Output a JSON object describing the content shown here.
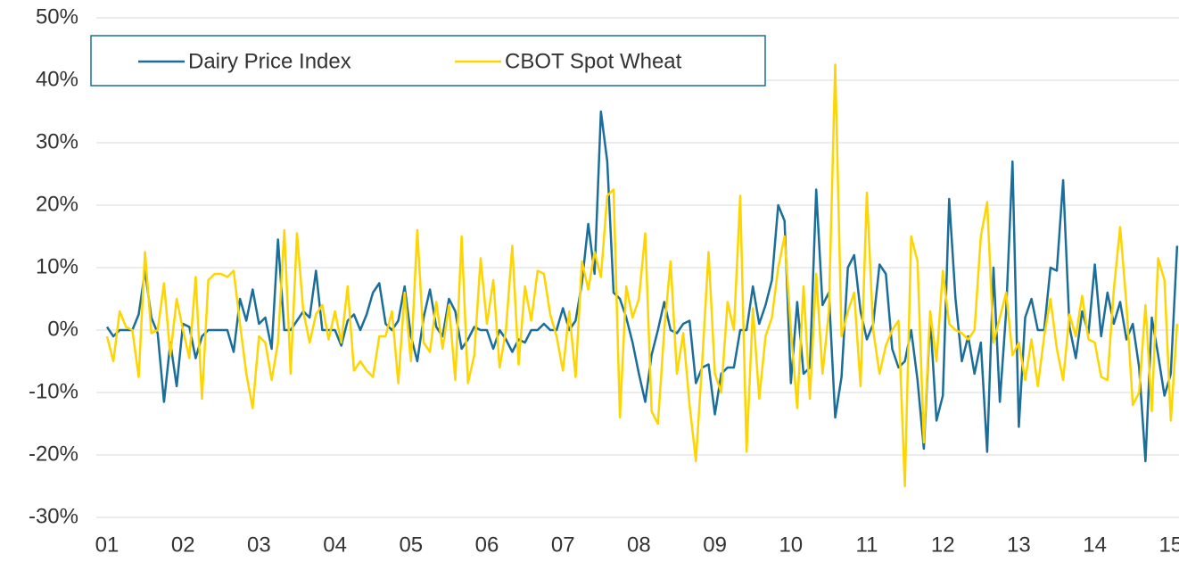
{
  "chart_data": {
    "type": "line",
    "x": [
      0,
      1,
      2,
      3,
      4,
      5,
      6,
      7,
      8,
      9,
      10,
      11,
      12,
      13,
      14,
      15,
      16,
      17,
      18,
      19,
      20,
      21,
      22,
      23,
      24,
      25,
      26,
      27,
      28,
      29,
      30,
      31,
      32,
      33,
      34,
      35,
      36,
      37,
      38,
      39,
      40,
      41,
      42,
      43,
      44,
      45,
      46,
      47,
      48,
      49,
      50,
      51,
      52,
      53,
      54,
      55,
      56,
      57,
      58,
      59,
      60,
      61,
      62,
      63,
      64,
      65,
      66,
      67,
      68,
      69,
      70,
      71,
      72,
      73,
      74,
      75,
      76,
      77,
      78,
      79,
      80,
      81,
      82,
      83,
      84,
      85,
      86,
      87,
      88,
      89,
      90,
      91,
      92,
      93,
      94,
      95,
      96,
      97,
      98,
      99,
      100,
      101,
      102,
      103,
      104,
      105,
      106,
      107,
      108,
      109,
      110,
      111,
      112,
      113,
      114,
      115,
      116,
      117,
      118,
      119,
      120,
      121,
      122,
      123,
      124,
      125,
      126,
      127,
      128,
      129,
      130,
      131,
      132,
      133,
      134,
      135,
      136,
      137,
      138,
      139,
      140,
      141,
      142,
      143,
      144,
      145,
      146,
      147,
      148,
      149,
      150,
      151,
      152,
      153,
      154,
      155,
      156,
      157,
      158,
      159,
      160,
      161,
      162,
      163,
      164,
      165,
      166,
      167,
      168,
      169
    ],
    "series": [
      {
        "name": "Dairy Price Index",
        "color": "#1a6e99",
        "values": [
          0.5,
          -1,
          0,
          0,
          0,
          2.5,
          9.5,
          2,
          -0.5,
          -11.5,
          -2,
          -9,
          1,
          0.5,
          -4.5,
          -1,
          0,
          0,
          0,
          0,
          -3.5,
          5,
          1.5,
          6.5,
          1,
          2,
          -3,
          14.5,
          0,
          0,
          1.5,
          3,
          2,
          9.5,
          0,
          0,
          0,
          -2.5,
          1.5,
          2.5,
          0,
          2.5,
          6,
          7.5,
          1,
          0,
          1.5,
          7,
          -1,
          -5,
          2,
          6.5,
          0.5,
          -1,
          5,
          3,
          -3,
          -1.5,
          0.5,
          0,
          0,
          -3,
          0,
          -1.5,
          -3.5,
          -1.5,
          -2,
          0,
          0,
          1,
          0,
          0,
          3.5,
          0,
          1.5,
          7.5,
          17,
          9,
          35,
          27,
          6,
          5,
          2,
          -2,
          -7,
          -11.5,
          -4,
          0,
          4.5,
          0,
          -0.5,
          1,
          1.5,
          -8.5,
          -6,
          -5.5,
          -13.5,
          -7,
          -6,
          -6,
          0,
          0,
          7,
          1,
          4,
          8,
          20,
          17.5,
          -8.5,
          4.5,
          -7,
          -6,
          22.5,
          4,
          6,
          -14,
          -7.5,
          10,
          12,
          3,
          -1.5,
          1,
          10.5,
          9,
          -3,
          -6,
          -5,
          0,
          -8,
          -19,
          2,
          -14.5,
          -10.5,
          21,
          5,
          -5,
          -1,
          -7,
          -2,
          -19.5,
          10,
          -11.5,
          3,
          27,
          -15.5,
          2,
          5,
          0,
          0,
          10,
          9.5,
          24,
          0.5,
          -4.5,
          3,
          -0.5,
          10.5,
          -1,
          6,
          1,
          4.5,
          -1.5,
          1,
          -6,
          -21,
          2,
          -4,
          -10.5,
          -7,
          13.5
        ]
      },
      {
        "name": "CBOT Spot Wheat",
        "color": "#ffd500",
        "values": [
          -1,
          -5,
          3,
          0.5,
          0,
          -7.5,
          12.5,
          -0.5,
          0,
          7.5,
          -4,
          5,
          0,
          -4.5,
          8.5,
          -11,
          8,
          9,
          9,
          8.5,
          9.5,
          1,
          -7,
          -12.5,
          -1,
          -2,
          -8,
          -2,
          16,
          -7,
          15.5,
          3,
          -2,
          2.5,
          4,
          -1.5,
          3,
          -2,
          7,
          -6.5,
          -5,
          -6.5,
          -7.5,
          -1,
          -1,
          3,
          -8.5,
          6,
          -5,
          16,
          -2,
          -3.5,
          4.5,
          -3,
          4,
          -8,
          15,
          -8.5,
          -4,
          11.5,
          1,
          8,
          -6,
          0,
          13.5,
          -5.5,
          7,
          1.5,
          9.5,
          9,
          2.5,
          -1,
          -6.5,
          3,
          -7.5,
          11,
          6.5,
          12.5,
          8.5,
          21.5,
          22.5,
          -14,
          7,
          2,
          5,
          15.5,
          -13,
          -15,
          0,
          11,
          -7,
          -0.5,
          -12,
          -21,
          -5,
          12.5,
          -7,
          -10,
          4.5,
          0,
          21.5,
          -19.5,
          3.5,
          -11,
          -1,
          2,
          10,
          15,
          0,
          -12.5,
          7,
          -11,
          9,
          -7,
          3,
          42.5,
          -1,
          3,
          6,
          -9,
          22,
          0,
          -7,
          -2.5,
          0,
          1.5,
          -25,
          15,
          11,
          -18,
          3,
          -5,
          9.5,
          1,
          0,
          -0.5,
          -1.5,
          0,
          15,
          20.5,
          -2,
          2,
          6,
          -4,
          -2,
          -8,
          -1.5,
          -9,
          -1,
          5,
          -3,
          -8,
          2.5,
          -1,
          5.5,
          -1.5,
          -2,
          -7.5,
          -8,
          6.5,
          16.5,
          4,
          -12,
          -10,
          4,
          -13,
          11.5,
          8,
          -14.5,
          1
        ]
      }
    ],
    "xlim": [
      0,
      169.3
    ],
    "xticks": [
      {
        "value": 0,
        "label": "01"
      },
      {
        "value": 12,
        "label": "02"
      },
      {
        "value": 24,
        "label": "03"
      },
      {
        "value": 36,
        "label": "04"
      },
      {
        "value": 48,
        "label": "05"
      },
      {
        "value": 60,
        "label": "06"
      },
      {
        "value": 72,
        "label": "07"
      },
      {
        "value": 84,
        "label": "08"
      },
      {
        "value": 96,
        "label": "09"
      },
      {
        "value": 108,
        "label": "10"
      },
      {
        "value": 120,
        "label": "11"
      },
      {
        "value": 132,
        "label": "12"
      },
      {
        "value": 144,
        "label": "13"
      },
      {
        "value": 156,
        "label": "14"
      },
      {
        "value": 168,
        "label": "15"
      }
    ],
    "ylim": [
      -30,
      50
    ],
    "yticks": [
      {
        "value": -30,
        "label": "-30%"
      },
      {
        "value": -20,
        "label": "-20%"
      },
      {
        "value": -10,
        "label": "-10%"
      },
      {
        "value": 0,
        "label": "0%"
      },
      {
        "value": 10,
        "label": "10%"
      },
      {
        "value": 20,
        "label": "20%"
      },
      {
        "value": 30,
        "label": "30%"
      },
      {
        "value": 40,
        "label": "40%"
      },
      {
        "value": 50,
        "label": "50%"
      }
    ],
    "grid": true,
    "legend": "upper left"
  }
}
